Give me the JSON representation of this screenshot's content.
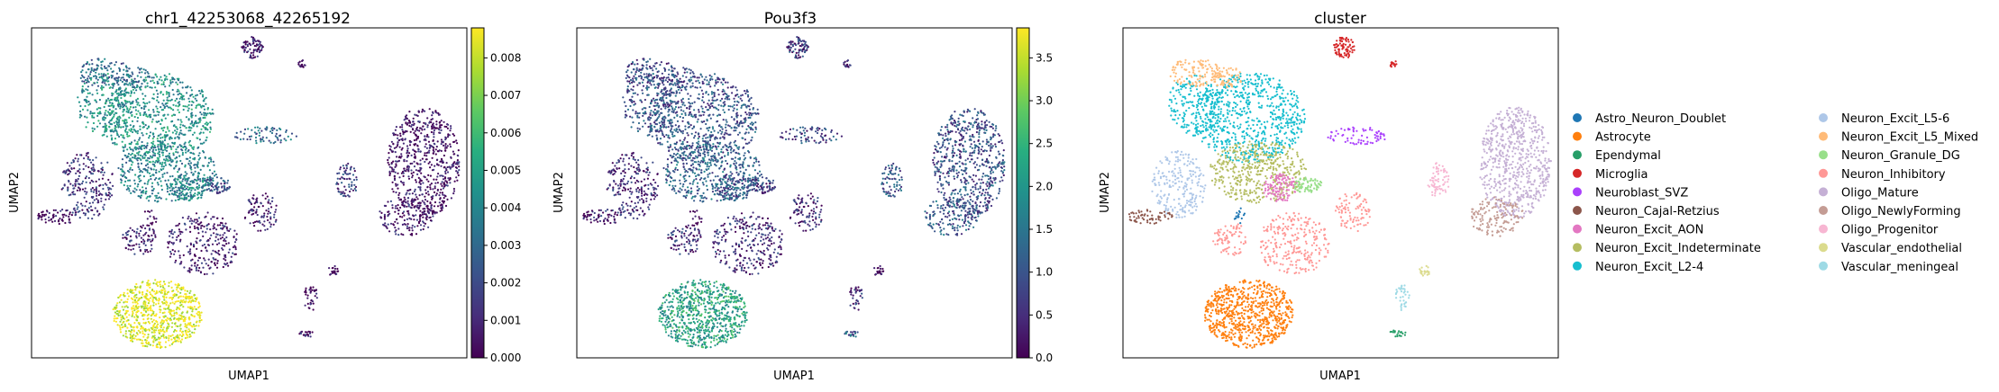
{
  "figure": {
    "panels": [
      {
        "title": "chr1_42253068_42265192",
        "xlabel": "UMAP1",
        "ylabel": "UMAP2",
        "colorbar": {
          "colormap": "viridis",
          "min": 0.0,
          "max": 0.0088,
          "ticks": [
            "0.000",
            "0.001",
            "0.002",
            "0.003",
            "0.004",
            "0.005",
            "0.006",
            "0.007",
            "0.008"
          ]
        }
      },
      {
        "title": "Pou3f3",
        "xlabel": "UMAP1",
        "ylabel": "UMAP2",
        "colorbar": {
          "colormap": "viridis",
          "min": 0.0,
          "max": 3.85,
          "ticks": [
            "0.0",
            "0.5",
            "1.0",
            "1.5",
            "2.0",
            "2.5",
            "3.0",
            "3.5"
          ]
        }
      },
      {
        "title": "cluster",
        "xlabel": "UMAP1",
        "ylabel": "UMAP2",
        "legend_title": "",
        "legend": [
          {
            "label": "Astro_Neuron_Doublet",
            "color": "#1f77b4"
          },
          {
            "label": "Astrocyte",
            "color": "#ff7f0e"
          },
          {
            "label": "Ependymal",
            "color": "#279e68"
          },
          {
            "label": "Microglia",
            "color": "#d62728"
          },
          {
            "label": "Neuroblast_SVZ",
            "color": "#aa40fc"
          },
          {
            "label": "Neuron_Cajal-Retzius",
            "color": "#8c564b"
          },
          {
            "label": "Neuron_Excit_AON",
            "color": "#e377c2"
          },
          {
            "label": "Neuron_Excit_Indeterminate",
            "color": "#b5bd61"
          },
          {
            "label": "Neuron_Excit_L2-4",
            "color": "#17becf"
          },
          {
            "label": "Neuron_Excit_L5-6",
            "color": "#aec7e8"
          },
          {
            "label": "Neuron_Excit_L5_Mixed",
            "color": "#ffbb78"
          },
          {
            "label": "Neuron_Granule_DG",
            "color": "#98df8a"
          },
          {
            "label": "Neuron_Inhibitory",
            "color": "#ff9896"
          },
          {
            "label": "Oligo_Mature",
            "color": "#c5b0d5"
          },
          {
            "label": "Oligo_NewlyForming",
            "color": "#c49c94"
          },
          {
            "label": "Oligo_Progenitor",
            "color": "#f7b6d2"
          },
          {
            "label": "Vascular_endothelial",
            "color": "#dbdb8d"
          },
          {
            "label": "Vascular_meningeal",
            "color": "#9edae5"
          }
        ]
      }
    ]
  },
  "chart_data": [
    {
      "type": "scatter",
      "title": "chr1_42253068_42265192",
      "xlabel": "UMAP1",
      "ylabel": "UMAP2",
      "color_scale": {
        "colormap": "viridis",
        "range": [
          0.0,
          0.0088
        ]
      },
      "note_values": "per-region color value",
      "regions": [
        {
          "cluster": "Neuron_Excit_L2-4",
          "value": 0.0045
        },
        {
          "cluster": "Neuron_Excit_Indeterminate",
          "value": 0.0038
        },
        {
          "cluster": "Neuron_Excit_L5_Mixed",
          "value": 0.003
        },
        {
          "cluster": "Neuron_Excit_L5-6",
          "value": 0.0012
        },
        {
          "cluster": "Neuron_Excit_AON",
          "value": 0.004
        },
        {
          "cluster": "Neuron_Granule_DG",
          "value": 0.002
        },
        {
          "cluster": "Neuron_Inhibitory",
          "value": 0.0008
        },
        {
          "cluster": "Oligo_Mature",
          "value": 0.0003
        },
        {
          "cluster": "Oligo_NewlyForming",
          "value": 0.0006
        },
        {
          "cluster": "Oligo_Progenitor",
          "value": 0.0015
        },
        {
          "cluster": "Astrocyte",
          "value": 0.0086
        },
        {
          "cluster": "Microglia",
          "value": 0.0005
        },
        {
          "cluster": "Neuron_Cajal-Retzius",
          "value": 0.0004
        },
        {
          "cluster": "Neuroblast_SVZ",
          "value": 0.003
        },
        {
          "cluster": "Ependymal",
          "value": 0.0005
        },
        {
          "cluster": "Vascular_meningeal",
          "value": 0.0002
        }
      ]
    },
    {
      "type": "scatter",
      "title": "Pou3f3",
      "xlabel": "UMAP1",
      "ylabel": "UMAP2",
      "color_scale": {
        "colormap": "viridis",
        "range": [
          0.0,
          3.85
        ]
      },
      "regions": [
        {
          "cluster": "Neuron_Excit_L2-4",
          "value": 1.0
        },
        {
          "cluster": "Neuron_Excit_Indeterminate",
          "value": 1.2
        },
        {
          "cluster": "Neuron_Excit_L5_Mixed",
          "value": 0.8
        },
        {
          "cluster": "Neuron_Excit_L5-6",
          "value": 0.4
        },
        {
          "cluster": "Neuron_Excit_AON",
          "value": 1.0
        },
        {
          "cluster": "Neuron_Granule_DG",
          "value": 0.6
        },
        {
          "cluster": "Neuron_Inhibitory",
          "value": 0.5
        },
        {
          "cluster": "Oligo_Mature",
          "value": 0.9
        },
        {
          "cluster": "Oligo_NewlyForming",
          "value": 1.1
        },
        {
          "cluster": "Oligo_Progenitor",
          "value": 1.0
        },
        {
          "cluster": "Astrocyte",
          "value": 2.2
        },
        {
          "cluster": "Microglia",
          "value": 0.6
        },
        {
          "cluster": "Neuron_Cajal-Retzius",
          "value": 0.4
        },
        {
          "cluster": "Neuroblast_SVZ",
          "value": 0.8
        },
        {
          "cluster": "Ependymal",
          "value": 1.2
        },
        {
          "cluster": "Vascular_meningeal",
          "value": 0.5
        }
      ]
    },
    {
      "type": "scatter",
      "title": "cluster",
      "xlabel": "UMAP1",
      "ylabel": "UMAP2",
      "legend_placement": "right",
      "categories": [
        "Astro_Neuron_Doublet",
        "Astrocyte",
        "Ependymal",
        "Microglia",
        "Neuroblast_SVZ",
        "Neuron_Cajal-Retzius",
        "Neuron_Excit_AON",
        "Neuron_Excit_Indeterminate",
        "Neuron_Excit_L2-4",
        "Neuron_Excit_L5-6",
        "Neuron_Excit_L5_Mixed",
        "Neuron_Granule_DG",
        "Neuron_Inhibitory",
        "Oligo_Mature",
        "Oligo_NewlyForming",
        "Oligo_Progenitor",
        "Vascular_endothelial",
        "Vascular_meningeal"
      ]
    }
  ]
}
